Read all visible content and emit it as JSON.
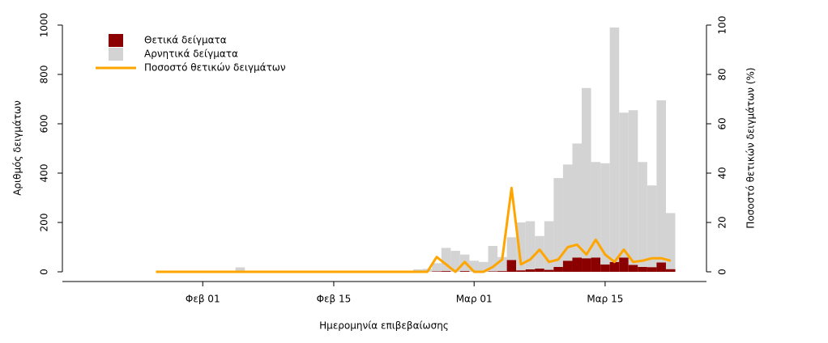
{
  "chart_data": {
    "type": "bar",
    "stacked": true,
    "x_label": "Ημερομηνία επιβεβαίωσης",
    "y_label": "Αριθμός δειγμάτων",
    "y2_label": "Ποσοστό θετικών δειγμάτων (%)",
    "categories": [
      null,
      null,
      null,
      null,
      null,
      "Φεβ 01",
      null,
      null,
      null,
      null,
      null,
      null,
      null,
      null,
      null,
      null,
      null,
      null,
      null,
      "Φεβ 15",
      null,
      null,
      null,
      null,
      null,
      null,
      null,
      null,
      null,
      null,
      null,
      null,
      null,
      null,
      "Μαρ 01",
      null,
      null,
      null,
      null,
      null,
      null,
      null,
      null,
      null,
      null,
      null,
      null,
      null,
      "Μαρ 15",
      null,
      null,
      null,
      null,
      null,
      null,
      null
    ],
    "series": [
      {
        "name": "Θετικά δείγματα",
        "color": "#8b0000",
        "values": [
          0,
          0,
          0,
          0,
          0,
          0,
          0,
          0,
          0,
          0,
          0,
          0,
          0,
          0,
          0,
          0,
          0,
          0,
          0,
          0,
          0,
          0,
          0,
          0,
          0,
          0,
          0,
          0,
          0,
          0,
          2,
          3,
          0,
          3,
          0,
          0,
          2,
          3,
          48,
          6,
          10,
          13,
          8,
          20,
          45,
          58,
          55,
          58,
          30,
          40,
          58,
          28,
          20,
          19,
          38,
          11
        ]
      },
      {
        "name": "Αρνητικά δείγματα",
        "color": "#d3d3d3",
        "values": [
          0,
          0,
          0,
          0,
          0,
          0,
          0,
          0,
          0,
          18,
          0,
          0,
          0,
          0,
          0,
          0,
          0,
          0,
          0,
          0,
          0,
          0,
          0,
          0,
          0,
          0,
          0,
          0,
          10,
          12,
          33,
          94,
          85,
          67,
          45,
          40,
          103,
          57,
          92,
          194,
          195,
          132,
          197,
          360,
          390,
          462,
          690,
          387,
          410,
          950,
          587,
          627,
          425,
          331,
          657,
          227
        ]
      },
      {
        "name": "Ποσοστό θετικών δειγμάτων",
        "color": "#ffa500",
        "type": "line",
        "axis": "y2",
        "values": [
          0,
          0,
          0,
          0,
          0,
          0,
          0,
          0,
          0,
          0,
          0,
          0,
          0,
          0,
          0,
          0,
          0,
          0,
          0,
          0,
          0,
          0,
          0,
          0,
          0,
          0,
          0,
          0,
          0,
          0,
          6,
          3,
          0,
          4,
          0,
          0,
          2,
          5,
          34,
          3,
          5,
          9,
          4,
          5,
          10,
          11,
          7,
          13,
          7,
          4,
          9,
          4,
          4.5,
          5.5,
          5.5,
          4.5
        ]
      }
    ],
    "ylim": [
      0,
      1000
    ],
    "yticks": [
      0,
      200,
      400,
      600,
      800,
      1000
    ],
    "y2lim": [
      0,
      100
    ],
    "y2ticks": [
      0,
      20,
      40,
      60,
      80,
      100
    ],
    "legend": "top-left"
  }
}
